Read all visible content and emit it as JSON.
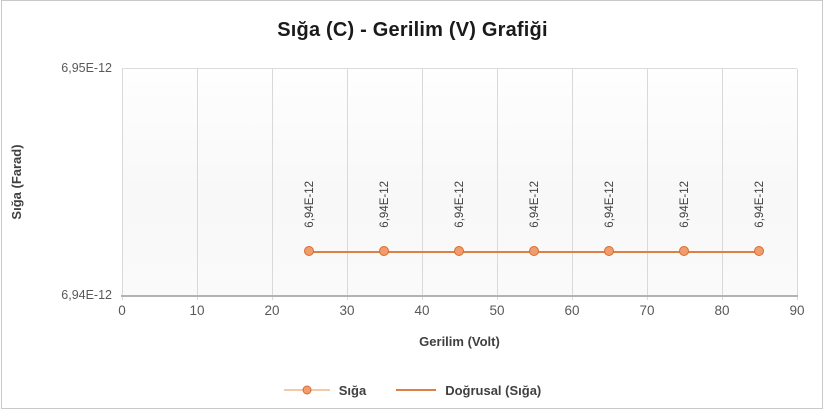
{
  "chart_data": {
    "type": "line",
    "title": "Sığa (C) - Gerilim (V) Grafiği",
    "xlabel": "Gerilim (Volt)",
    "ylabel": "Sığa (Farad)",
    "xlim": [
      0,
      90
    ],
    "ylim": [
      6.94e-12,
      6.95e-12
    ],
    "x_ticks": [
      0,
      10,
      20,
      30,
      40,
      50,
      60,
      70,
      80,
      90
    ],
    "y_ticks": [
      {
        "label": "6,94E-12",
        "value": 6.94e-12
      },
      {
        "label": "6,95E-12",
        "value": 6.95e-12
      }
    ],
    "grid": "vertical-only",
    "legend_position": "bottom-center",
    "series": [
      {
        "name": "Sığa",
        "type": "scatter",
        "marker": "circle",
        "x": [
          25,
          35,
          45,
          55,
          65,
          75,
          85
        ],
        "values": [
          6.9419e-12,
          6.9419e-12,
          6.9419e-12,
          6.9419e-12,
          6.9419e-12,
          6.9419e-12,
          6.9419e-12
        ],
        "data_labels": [
          "6,94E-12",
          "6,94E-12",
          "6,94E-12",
          "6,94E-12",
          "6,94E-12",
          "6,94E-12",
          "6,94E-12"
        ],
        "data_label_rotation_deg": -90
      },
      {
        "name": "Doğrusal (Sığa)",
        "type": "trendline",
        "x_range": [
          25,
          85
        ],
        "value": 6.9419e-12
      }
    ]
  },
  "legend": {
    "items": [
      {
        "label": "Sığa",
        "symbol": "line-with-circle-marker"
      },
      {
        "label": "Doğrusal (Sığa)",
        "symbol": "line"
      }
    ]
  },
  "colors": {
    "series_line": "#dd8045",
    "marker_fill": "#f09c6d",
    "marker_stroke": "#d96c2e",
    "legend_light_line": "#f4c9a8",
    "gridline": "#d9d9d9",
    "axis_line": "#b3b3b3",
    "tick_text": "#595959",
    "label_text": "#404040",
    "title_text": "#1a1a1a",
    "chart_border": "#c9c9c9"
  }
}
